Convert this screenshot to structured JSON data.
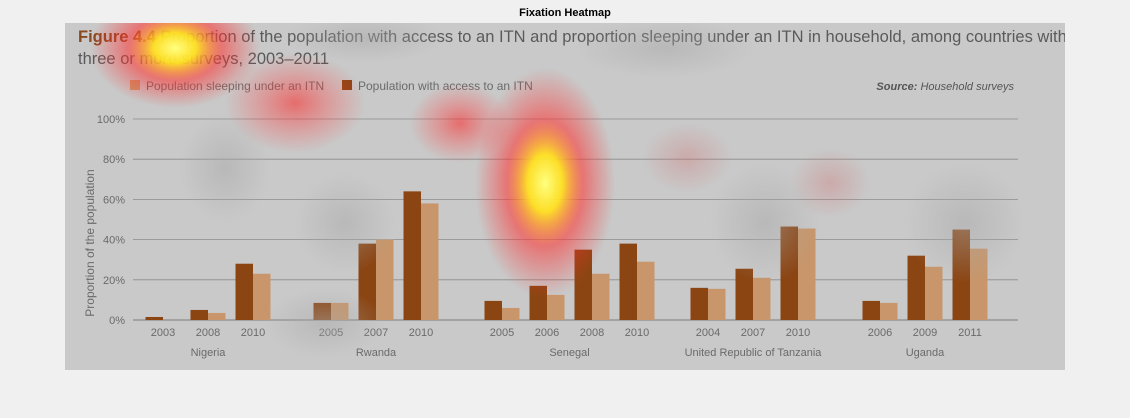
{
  "heatmap": {
    "title": "Fixation Heatmap"
  },
  "colors": {
    "access": "#8b4513",
    "sleeping": "#c8966a",
    "figure_label": "#8a4a20",
    "background": "#c9c9c9",
    "grid": "#8c8c8c"
  },
  "chart_data": {
    "type": "bar",
    "title_prefix": "Figure 4.4",
    "title_rest_line1": " Proportion of the population with access to an ITN and proportion sleeping under an ITN in household, among countries with",
    "title_line2": "three or more surveys, 2003–2011",
    "source_label": "Source:",
    "source_text": " Household surveys",
    "ylabel": "Proportion of the population",
    "ylim": [
      0,
      100
    ],
    "y_ticks": [
      "0%",
      "20%",
      "40%",
      "60%",
      "80%",
      "100%"
    ],
    "legend": [
      {
        "name": "Population sleeping under an ITN",
        "color": "#c8966a"
      },
      {
        "name": "Population with access to an ITN",
        "color": "#8b4513"
      }
    ],
    "series_names": [
      "Population with access to an ITN",
      "Population sleeping under an ITN"
    ],
    "groups": [
      {
        "country": "Nigeria",
        "years": [
          "2003",
          "2008",
          "2010"
        ],
        "access": [
          1.5,
          5,
          28
        ],
        "sleeping": [
          0,
          3.5,
          23
        ]
      },
      {
        "country": "Rwanda",
        "years": [
          "2005",
          "2007",
          "2010"
        ],
        "access": [
          8.5,
          38,
          64
        ],
        "sleeping": [
          8.5,
          40,
          58
        ]
      },
      {
        "country": "Senegal",
        "years": [
          "2005",
          "2006",
          "2008",
          "2010"
        ],
        "access": [
          9.5,
          17,
          35,
          38
        ],
        "sleeping": [
          6,
          12.5,
          23,
          29
        ]
      },
      {
        "country": "United Republic of Tanzania",
        "years": [
          "2004",
          "2007",
          "2010"
        ],
        "access": [
          16,
          25.5,
          46.5
        ],
        "sleeping": [
          15.5,
          21,
          45.5
        ]
      },
      {
        "country": "Uganda",
        "years": [
          "2006",
          "2009",
          "2011"
        ],
        "access": [
          9.5,
          32,
          45
        ],
        "sleeping": [
          8.5,
          26.5,
          35.5
        ]
      }
    ]
  }
}
